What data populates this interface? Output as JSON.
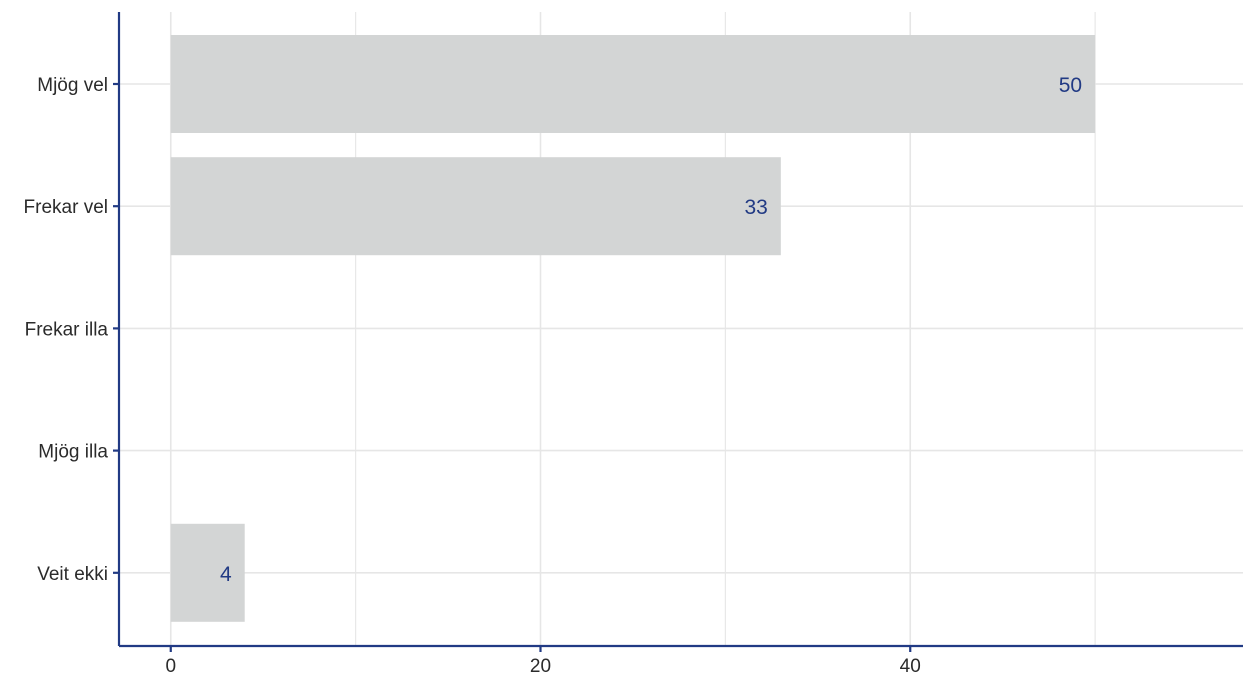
{
  "chart_data": {
    "type": "bar",
    "orientation": "horizontal",
    "categories": [
      "Mjög vel",
      "Frekar vel",
      "Frekar illa",
      "Mjög illa",
      "Veit ekki"
    ],
    "values": [
      50,
      33,
      0,
      0,
      4
    ],
    "value_labels": [
      "50",
      "33",
      "",
      "",
      "4"
    ],
    "title": "",
    "xlabel": "",
    "ylabel": "",
    "xlim": [
      -2.8,
      58
    ],
    "xticks": [
      0,
      20,
      40
    ],
    "xtick_labels": [
      "0",
      "20",
      "40"
    ],
    "grid": true,
    "legend": "none",
    "colors": {
      "bar": "#d3d5d5",
      "axis": "#213a84",
      "grid": "#e6e6e6",
      "value_label": "#213a84"
    }
  }
}
